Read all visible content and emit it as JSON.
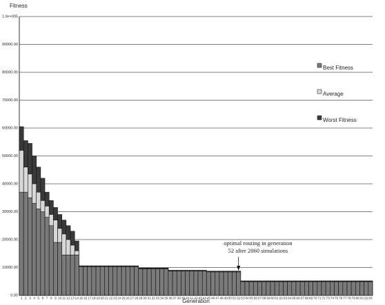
{
  "chart_data": {
    "type": "bar",
    "overlap": true,
    "y_label": "Fitness",
    "x_label": "Generation",
    "annotation": [
      "optimal routing in generation",
      "52 after 2060 simulations"
    ],
    "annotation_category": 51,
    "categories": [
      "1",
      "2",
      "3",
      "4",
      "5",
      "6",
      "7",
      "8",
      "9",
      "10",
      "11",
      "12",
      "13",
      "14",
      "15",
      "16",
      "17",
      "18",
      "19",
      "20",
      "21",
      "22",
      "23",
      "24",
      "25",
      "26",
      "27",
      "28",
      "29",
      "30",
      "31",
      "32",
      "33",
      "34",
      "35",
      "36",
      "37",
      "38",
      "39",
      "40",
      "41",
      "42",
      "43",
      "44",
      "45",
      "46",
      "47",
      "48",
      "49",
      "50",
      "51",
      "52",
      "53",
      "54",
      "55",
      "56",
      "57",
      "58",
      "59",
      "60",
      "61",
      "62",
      "63",
      "64",
      "65",
      "66",
      "67",
      "68",
      "69",
      "70",
      "71",
      "72",
      "73",
      "74",
      "75",
      "76",
      "77",
      "78",
      "79",
      "80",
      "81",
      "82",
      "83"
    ],
    "series": [
      {
        "name": "Worst Fitness",
        "color": "#3a3a3a",
        "values": [
          60500,
          55500,
          54500,
          50000,
          46000,
          42000,
          37000,
          34000,
          31500,
          29000,
          27000,
          25000,
          23000,
          19500,
          10600,
          10600,
          10600,
          10600,
          10600,
          10600,
          10600,
          10600,
          10600,
          10600,
          10600,
          10600,
          10600,
          10600,
          9800,
          9800,
          9800,
          9800,
          9800,
          9800,
          9800,
          9000,
          9000,
          9000,
          9000,
          9000,
          9000,
          9000,
          9000,
          9000,
          8700,
          8700,
          8700,
          8700,
          8700,
          8700,
          8700,
          8700,
          5200,
          5200,
          5200,
          5200,
          5200,
          5200,
          5200,
          5200,
          5200,
          5200,
          5200,
          5200,
          5200,
          5200,
          5200,
          5200,
          5200,
          5200,
          5200,
          5200,
          5200,
          5200,
          5200,
          5200,
          5200,
          5200,
          5200,
          5200,
          5200,
          5200,
          5200
        ]
      },
      {
        "name": "Average",
        "color": "#d8d8d8",
        "values": [
          52000,
          46000,
          43500,
          40000,
          37000,
          34000,
          32000,
          29000,
          27000,
          24000,
          22000,
          20000,
          18000,
          16000,
          10400,
          10400,
          10400,
          10400,
          10400,
          10400,
          10400,
          10400,
          10400,
          10400,
          10400,
          10400,
          10400,
          10400,
          9600,
          9600,
          9600,
          9600,
          9600,
          9600,
          9600,
          8800,
          8800,
          8800,
          8800,
          8800,
          8800,
          8800,
          8800,
          8800,
          8500,
          8500,
          8500,
          8500,
          8500,
          8500,
          8500,
          8500,
          5000,
          5000,
          5000,
          5000,
          5000,
          5000,
          5000,
          5000,
          5000,
          5000,
          5000,
          5000,
          5000,
          5000,
          5000,
          5000,
          5000,
          5000,
          5000,
          5000,
          5000,
          5000,
          5000,
          5000,
          5000,
          5000,
          5000,
          5000,
          5000,
          5000,
          5000
        ]
      },
      {
        "name": "Best Fitness",
        "color": "#7a7a7a",
        "values": [
          37000,
          37000,
          35000,
          33000,
          31000,
          30000,
          28000,
          25000,
          19000,
          19000,
          14500,
          14500,
          14500,
          14500,
          10300,
          10300,
          10300,
          10300,
          10300,
          10300,
          10300,
          10300,
          10300,
          10300,
          10300,
          10300,
          10300,
          10300,
          9500,
          9500,
          9500,
          9500,
          9500,
          9500,
          9500,
          8700,
          8700,
          8700,
          8700,
          8700,
          8700,
          8700,
          8700,
          8700,
          8400,
          8400,
          8400,
          8400,
          8400,
          8400,
          8400,
          8400,
          4900,
          4900,
          4900,
          4900,
          4900,
          4900,
          4900,
          4900,
          4900,
          4900,
          4900,
          4900,
          4900,
          4900,
          4900,
          4900,
          4900,
          4900,
          4900,
          4900,
          4900,
          4900,
          4900,
          4900,
          4900,
          4900,
          4900,
          4900,
          4900,
          4900,
          4900
        ]
      }
    ],
    "legend_order": [
      2,
      1,
      0
    ],
    "ylim": [
      0,
      100000
    ],
    "yticks": [
      {
        "value": 0,
        "label": "0.00"
      },
      {
        "value": 10000,
        "label": "10000.00"
      },
      {
        "value": 20000,
        "label": "20000.00"
      },
      {
        "value": 30000,
        "label": "30000.00"
      },
      {
        "value": 40000,
        "label": "40000.00"
      },
      {
        "value": 50000,
        "label": "50000.00"
      },
      {
        "value": 60000,
        "label": "60000.00"
      },
      {
        "value": 70000,
        "label": "70000.00"
      },
      {
        "value": 80000,
        "label": "80000.00"
      },
      {
        "value": 90000,
        "label": "90000.00"
      },
      {
        "value": 100000,
        "label": "1.0e+005"
      }
    ],
    "grid": true
  }
}
